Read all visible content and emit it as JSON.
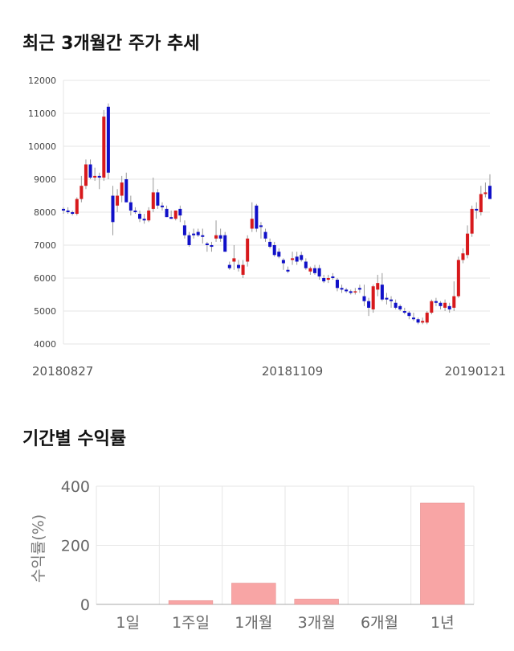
{
  "titles": {
    "price": "최근 3개월간 주가 추세",
    "returns": "기간별 수익률"
  },
  "colors": {
    "up": "#d7191c",
    "down": "#1010c8",
    "bar": "#f8a5a5",
    "grid": "#e6e6e6",
    "axis": "#aaaaaa"
  },
  "chart_data": [
    {
      "type": "candlestick",
      "ylim": [
        4000,
        12000
      ],
      "yticks": [
        4000,
        5000,
        6000,
        7000,
        8000,
        9000,
        10000,
        11000,
        12000
      ],
      "xtick_labels": [
        {
          "label": "20180827",
          "index": 0
        },
        {
          "label": "20181109",
          "index": 51
        },
        {
          "label": "20190121",
          "index": 101
        }
      ],
      "grid": true,
      "candles": [
        [
          8100,
          8150,
          7950,
          8050
        ],
        [
          8050,
          8150,
          7950,
          8000
        ],
        [
          8000,
          8050,
          7900,
          7950
        ],
        [
          7950,
          8450,
          7900,
          8400
        ],
        [
          8400,
          9100,
          8300,
          8800
        ],
        [
          8800,
          9600,
          8700,
          9450
        ],
        [
          9450,
          9600,
          9000,
          9050
        ],
        [
          9050,
          9350,
          8950,
          9100
        ],
        [
          9100,
          9200,
          8700,
          9050
        ],
        [
          9050,
          11100,
          8950,
          10900
        ],
        [
          11200,
          11300,
          9000,
          9200
        ],
        [
          8500,
          8800,
          7300,
          7700
        ],
        [
          8200,
          8700,
          8000,
          8500
        ],
        [
          8500,
          9100,
          8300,
          8900
        ],
        [
          9000,
          9200,
          8300,
          8300
        ],
        [
          8300,
          8500,
          7900,
          8050
        ],
        [
          8050,
          8150,
          7950,
          8000
        ],
        [
          7950,
          8050,
          7700,
          7800
        ],
        [
          7800,
          7950,
          7650,
          7750
        ],
        [
          7750,
          8150,
          7700,
          8050
        ],
        [
          8100,
          9050,
          8000,
          8600
        ],
        [
          8600,
          8700,
          8100,
          8200
        ],
        [
          8200,
          8300,
          8050,
          8150
        ],
        [
          8100,
          8200,
          7850,
          7850
        ],
        [
          7850,
          8050,
          7800,
          7800
        ],
        [
          7800,
          8050,
          7750,
          8050
        ],
        [
          8100,
          8200,
          7700,
          7900
        ],
        [
          7600,
          7750,
          7200,
          7300
        ],
        [
          7300,
          7400,
          6950,
          7000
        ],
        [
          7350,
          7500,
          7200,
          7300
        ],
        [
          7400,
          7500,
          7250,
          7300
        ],
        [
          7300,
          7500,
          7050,
          7250
        ],
        [
          7050,
          7100,
          6800,
          7000
        ],
        [
          7000,
          7100,
          6800,
          6950
        ],
        [
          7200,
          7750,
          7100,
          7300
        ],
        [
          7300,
          7500,
          7100,
          7200
        ],
        [
          7300,
          7400,
          6800,
          6800
        ],
        [
          6400,
          6500,
          6250,
          6300
        ],
        [
          6500,
          7000,
          6250,
          6600
        ],
        [
          6400,
          6550,
          6200,
          6300
        ],
        [
          6100,
          6550,
          6000,
          6400
        ],
        [
          6500,
          7300,
          6350,
          7200
        ],
        [
          7500,
          8300,
          7400,
          7800
        ],
        [
          8200,
          8250,
          7400,
          7500
        ],
        [
          7600,
          7700,
          7200,
          7550
        ],
        [
          7400,
          7500,
          7100,
          7200
        ],
        [
          7100,
          7200,
          6900,
          6950
        ],
        [
          7000,
          7100,
          6650,
          6700
        ],
        [
          6800,
          6900,
          6600,
          6650
        ],
        [
          6550,
          6600,
          6250,
          6450
        ],
        [
          6250,
          6350,
          6150,
          6200
        ],
        [
          6550,
          6800,
          6400,
          6600
        ],
        [
          6650,
          6800,
          6400,
          6500
        ],
        [
          6700,
          6800,
          6500,
          6550
        ],
        [
          6500,
          6600,
          6250,
          6300
        ],
        [
          6200,
          6350,
          6100,
          6300
        ],
        [
          6300,
          6400,
          6100,
          6150
        ],
        [
          6300,
          6400,
          5950,
          6050
        ],
        [
          6000,
          6100,
          5850,
          5900
        ],
        [
          5950,
          6100,
          5850,
          6000
        ],
        [
          6050,
          6150,
          5950,
          6000
        ],
        [
          5950,
          6000,
          5600,
          5700
        ],
        [
          5700,
          5800,
          5550,
          5650
        ],
        [
          5650,
          5700,
          5550,
          5600
        ],
        [
          5600,
          5650,
          5500,
          5550
        ],
        [
          5600,
          5700,
          5500,
          5600
        ],
        [
          5700,
          5800,
          5550,
          5650
        ],
        [
          5450,
          5800,
          5150,
          5300
        ],
        [
          5300,
          5400,
          4850,
          5100
        ],
        [
          5050,
          5800,
          4950,
          5750
        ],
        [
          5650,
          6100,
          5450,
          5850
        ],
        [
          5800,
          6150,
          5300,
          5350
        ],
        [
          5400,
          5550,
          5200,
          5350
        ],
        [
          5350,
          5450,
          5100,
          5300
        ],
        [
          5250,
          5350,
          5050,
          5100
        ],
        [
          5150,
          5200,
          5000,
          5050
        ],
        [
          5000,
          5100,
          4900,
          4950
        ],
        [
          4950,
          5000,
          4750,
          4850
        ],
        [
          4800,
          4950,
          4700,
          4750
        ],
        [
          4750,
          4800,
          4600,
          4650
        ],
        [
          4650,
          4800,
          4600,
          4700
        ],
        [
          4650,
          5000,
          4600,
          4950
        ],
        [
          4950,
          5350,
          4900,
          5300
        ],
        [
          5300,
          5400,
          5150,
          5250
        ],
        [
          5250,
          5300,
          5050,
          5150
        ],
        [
          5100,
          5350,
          5000,
          5250
        ],
        [
          5150,
          5250,
          4950,
          5050
        ],
        [
          5100,
          5900,
          5000,
          5450
        ],
        [
          5450,
          6650,
          5400,
          6550
        ],
        [
          6550,
          6900,
          6450,
          6750
        ],
        [
          6700,
          7600,
          6600,
          7350
        ],
        [
          7350,
          8200,
          7250,
          8100
        ],
        [
          8100,
          8300,
          7800,
          8050
        ],
        [
          8000,
          8800,
          7900,
          8550
        ],
        [
          8550,
          8900,
          8450,
          8600
        ],
        [
          8800,
          9150,
          8450,
          8400
        ]
      ]
    },
    {
      "type": "bar",
      "categories": [
        "1일",
        "1주일",
        "1개월",
        "3개월",
        "6개월",
        "1년"
      ],
      "values": [
        0,
        13,
        72,
        18,
        0,
        343
      ],
      "ylim": [
        0,
        400
      ],
      "yticks": [
        0,
        200,
        400
      ],
      "ylabel": "수익률(%)",
      "grid": true
    }
  ]
}
